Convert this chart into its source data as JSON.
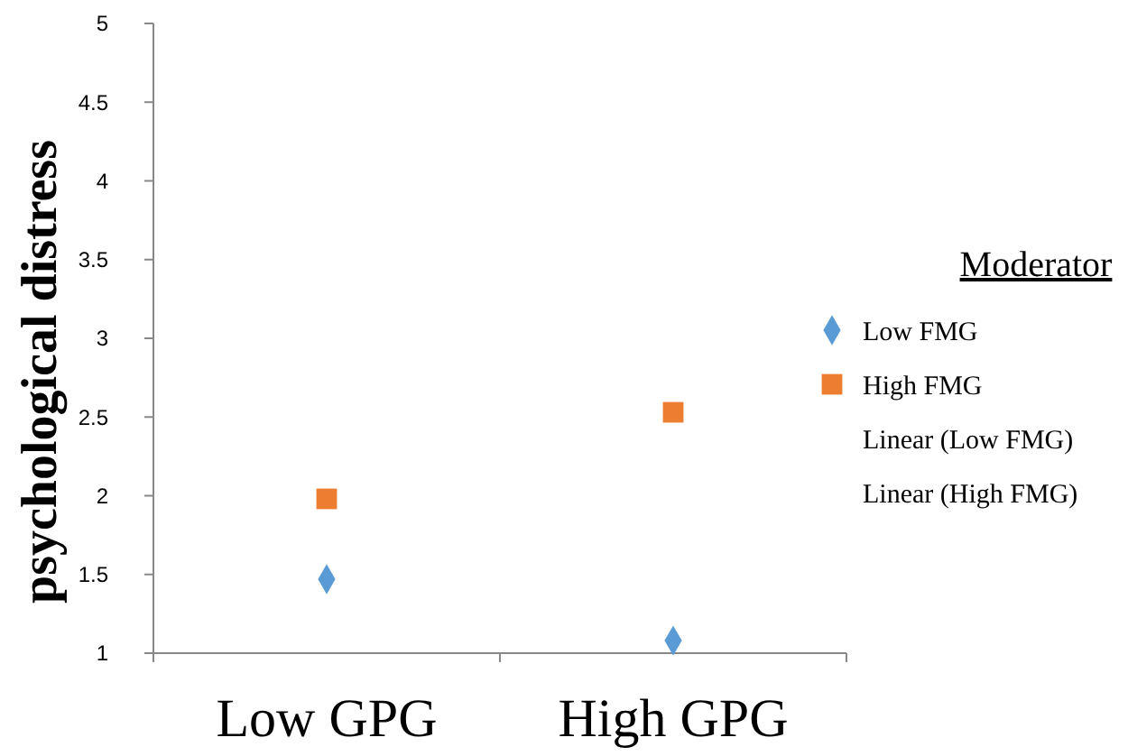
{
  "chart_data": {
    "type": "scatter",
    "ylabel": "psychological distress",
    "categories": [
      "Low GPG",
      "High GPG"
    ],
    "series": [
      {
        "name": "Low FMG",
        "color": "#5b9bd5",
        "marker": "diamond",
        "values": [
          1.47,
          1.08
        ]
      },
      {
        "name": "High FMG",
        "color": "#ed7d31",
        "marker": "square",
        "values": [
          1.98,
          2.53
        ]
      }
    ],
    "ylim": [
      1,
      5
    ],
    "yticks": [
      1,
      1.5,
      2,
      2.5,
      3,
      3.5,
      4,
      4.5,
      5
    ],
    "grid": false,
    "legend": "right",
    "legend_title": "Moderator",
    "annotations": [
      "Linear (Low FMG)",
      "Linear (High FMG)"
    ]
  }
}
